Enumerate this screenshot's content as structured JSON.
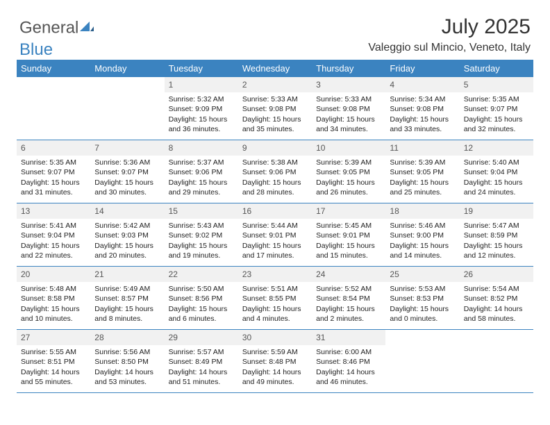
{
  "logo": {
    "text1": "General",
    "text2": "Blue"
  },
  "title": "July 2025",
  "location": "Valeggio sul Mincio, Veneto, Italy",
  "colors": {
    "header_bg": "#3b83c0",
    "header_text": "#ffffff",
    "daynum_bg": "#f1f1f1",
    "daynum_text": "#555555",
    "body_text": "#222222",
    "divider": "#3b83c0",
    "logo_gray": "#555555",
    "logo_blue": "#3b83c0"
  },
  "typography": {
    "title_fontsize": 30,
    "location_fontsize": 16,
    "header_fontsize": 13,
    "daynum_fontsize": 12,
    "body_fontsize": 10.5
  },
  "day_labels": [
    "Sunday",
    "Monday",
    "Tuesday",
    "Wednesday",
    "Thursday",
    "Friday",
    "Saturday"
  ],
  "weeks": [
    [
      null,
      null,
      {
        "n": "1",
        "sr": "Sunrise: 5:32 AM",
        "ss": "Sunset: 9:09 PM",
        "dl": "Daylight: 15 hours and 36 minutes."
      },
      {
        "n": "2",
        "sr": "Sunrise: 5:33 AM",
        "ss": "Sunset: 9:08 PM",
        "dl": "Daylight: 15 hours and 35 minutes."
      },
      {
        "n": "3",
        "sr": "Sunrise: 5:33 AM",
        "ss": "Sunset: 9:08 PM",
        "dl": "Daylight: 15 hours and 34 minutes."
      },
      {
        "n": "4",
        "sr": "Sunrise: 5:34 AM",
        "ss": "Sunset: 9:08 PM",
        "dl": "Daylight: 15 hours and 33 minutes."
      },
      {
        "n": "5",
        "sr": "Sunrise: 5:35 AM",
        "ss": "Sunset: 9:07 PM",
        "dl": "Daylight: 15 hours and 32 minutes."
      }
    ],
    [
      {
        "n": "6",
        "sr": "Sunrise: 5:35 AM",
        "ss": "Sunset: 9:07 PM",
        "dl": "Daylight: 15 hours and 31 minutes."
      },
      {
        "n": "7",
        "sr": "Sunrise: 5:36 AM",
        "ss": "Sunset: 9:07 PM",
        "dl": "Daylight: 15 hours and 30 minutes."
      },
      {
        "n": "8",
        "sr": "Sunrise: 5:37 AM",
        "ss": "Sunset: 9:06 PM",
        "dl": "Daylight: 15 hours and 29 minutes."
      },
      {
        "n": "9",
        "sr": "Sunrise: 5:38 AM",
        "ss": "Sunset: 9:06 PM",
        "dl": "Daylight: 15 hours and 28 minutes."
      },
      {
        "n": "10",
        "sr": "Sunrise: 5:39 AM",
        "ss": "Sunset: 9:05 PM",
        "dl": "Daylight: 15 hours and 26 minutes."
      },
      {
        "n": "11",
        "sr": "Sunrise: 5:39 AM",
        "ss": "Sunset: 9:05 PM",
        "dl": "Daylight: 15 hours and 25 minutes."
      },
      {
        "n": "12",
        "sr": "Sunrise: 5:40 AM",
        "ss": "Sunset: 9:04 PM",
        "dl": "Daylight: 15 hours and 24 minutes."
      }
    ],
    [
      {
        "n": "13",
        "sr": "Sunrise: 5:41 AM",
        "ss": "Sunset: 9:04 PM",
        "dl": "Daylight: 15 hours and 22 minutes."
      },
      {
        "n": "14",
        "sr": "Sunrise: 5:42 AM",
        "ss": "Sunset: 9:03 PM",
        "dl": "Daylight: 15 hours and 20 minutes."
      },
      {
        "n": "15",
        "sr": "Sunrise: 5:43 AM",
        "ss": "Sunset: 9:02 PM",
        "dl": "Daylight: 15 hours and 19 minutes."
      },
      {
        "n": "16",
        "sr": "Sunrise: 5:44 AM",
        "ss": "Sunset: 9:01 PM",
        "dl": "Daylight: 15 hours and 17 minutes."
      },
      {
        "n": "17",
        "sr": "Sunrise: 5:45 AM",
        "ss": "Sunset: 9:01 PM",
        "dl": "Daylight: 15 hours and 15 minutes."
      },
      {
        "n": "18",
        "sr": "Sunrise: 5:46 AM",
        "ss": "Sunset: 9:00 PM",
        "dl": "Daylight: 15 hours and 14 minutes."
      },
      {
        "n": "19",
        "sr": "Sunrise: 5:47 AM",
        "ss": "Sunset: 8:59 PM",
        "dl": "Daylight: 15 hours and 12 minutes."
      }
    ],
    [
      {
        "n": "20",
        "sr": "Sunrise: 5:48 AM",
        "ss": "Sunset: 8:58 PM",
        "dl": "Daylight: 15 hours and 10 minutes."
      },
      {
        "n": "21",
        "sr": "Sunrise: 5:49 AM",
        "ss": "Sunset: 8:57 PM",
        "dl": "Daylight: 15 hours and 8 minutes."
      },
      {
        "n": "22",
        "sr": "Sunrise: 5:50 AM",
        "ss": "Sunset: 8:56 PM",
        "dl": "Daylight: 15 hours and 6 minutes."
      },
      {
        "n": "23",
        "sr": "Sunrise: 5:51 AM",
        "ss": "Sunset: 8:55 PM",
        "dl": "Daylight: 15 hours and 4 minutes."
      },
      {
        "n": "24",
        "sr": "Sunrise: 5:52 AM",
        "ss": "Sunset: 8:54 PM",
        "dl": "Daylight: 15 hours and 2 minutes."
      },
      {
        "n": "25",
        "sr": "Sunrise: 5:53 AM",
        "ss": "Sunset: 8:53 PM",
        "dl": "Daylight: 15 hours and 0 minutes."
      },
      {
        "n": "26",
        "sr": "Sunrise: 5:54 AM",
        "ss": "Sunset: 8:52 PM",
        "dl": "Daylight: 14 hours and 58 minutes."
      }
    ],
    [
      {
        "n": "27",
        "sr": "Sunrise: 5:55 AM",
        "ss": "Sunset: 8:51 PM",
        "dl": "Daylight: 14 hours and 55 minutes."
      },
      {
        "n": "28",
        "sr": "Sunrise: 5:56 AM",
        "ss": "Sunset: 8:50 PM",
        "dl": "Daylight: 14 hours and 53 minutes."
      },
      {
        "n": "29",
        "sr": "Sunrise: 5:57 AM",
        "ss": "Sunset: 8:49 PM",
        "dl": "Daylight: 14 hours and 51 minutes."
      },
      {
        "n": "30",
        "sr": "Sunrise: 5:59 AM",
        "ss": "Sunset: 8:48 PM",
        "dl": "Daylight: 14 hours and 49 minutes."
      },
      {
        "n": "31",
        "sr": "Sunrise: 6:00 AM",
        "ss": "Sunset: 8:46 PM",
        "dl": "Daylight: 14 hours and 46 minutes."
      },
      null,
      null
    ]
  ]
}
